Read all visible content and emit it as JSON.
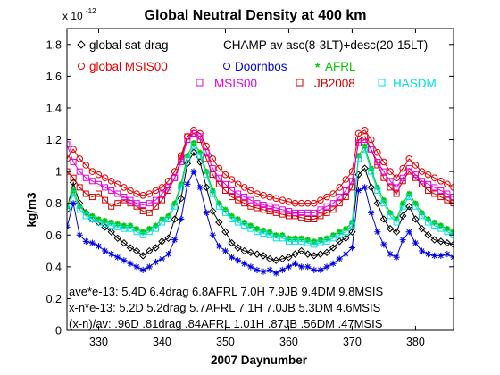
{
  "colors": {
    "global_drag": "#000000",
    "global_msis": "#e00000",
    "doornbos": "#0000e6",
    "afrl": "#00c800",
    "msis00": "#e000e0",
    "jb2008": "#d00000",
    "hasdm": "#00e0e0"
  },
  "chart_data": {
    "type": "line",
    "title": "Global Neutral Density at 400 km",
    "xlabel": "2007 Daynumber",
    "ylabel": "kg/m3",
    "y_scale_base": "x 10",
    "y_scale_exponent": "-12",
    "xlim": [
      325,
      386
    ],
    "ylim": [
      0,
      1.9
    ],
    "xticks": [
      330,
      340,
      350,
      360,
      370,
      380
    ],
    "yticks": [
      0,
      0.2,
      0.4,
      0.6,
      0.8,
      1,
      1.2,
      1.4,
      1.6,
      1.8
    ],
    "ytick_labels": [
      "0",
      "0.2",
      "0.4",
      "0.6",
      "0.8",
      "1",
      "1.2",
      "1.4",
      "1.6",
      "1.8"
    ],
    "grid": false,
    "legend": {
      "label_global_drag": "global sat drag",
      "label_champ": "CHAMP av asc(8-3LT)+desc(20-15LT)",
      "label_global_msis": "global MSIS00",
      "label_doornbos": "Doornbos",
      "label_afrl": "AFRL",
      "label_msis00": "MSIS00",
      "label_jb2008": "JB2008",
      "label_hasdm": "HASDM"
    },
    "annotations": [
      "ave*e-13: 5.4D 6.4drag 6.8AFRL 7.0H 7.9JB 9.4DM 9.8MSIS",
      "x-n*e-13: 5.2D 5.2drag 5.7AFRL 7.1H 7.0JB 5.3DM 4.6MSIS",
      "(x-n)/av: .96D .81drag .84AFRL 1.01H .87JB .56DM .47MSIS"
    ],
    "x": [
      325,
      326,
      327,
      328,
      329,
      330,
      331,
      332,
      333,
      334,
      335,
      336,
      337,
      338,
      339,
      340,
      341,
      342,
      343,
      344,
      345,
      346,
      347,
      348,
      349,
      350,
      351,
      352,
      353,
      354,
      355,
      356,
      357,
      358,
      359,
      360,
      361,
      362,
      363,
      364,
      365,
      366,
      367,
      368,
      369,
      370,
      371,
      372,
      373,
      374,
      375,
      376,
      377,
      378,
      379,
      380,
      381,
      382,
      383,
      384,
      385,
      386
    ],
    "series": [
      {
        "name": "global sat drag",
        "key": "global_drag",
        "marker": "diamond",
        "values": [
          0.76,
          0.93,
          0.8,
          0.74,
          0.7,
          0.68,
          0.65,
          0.62,
          0.58,
          0.55,
          0.52,
          0.5,
          0.47,
          0.5,
          0.52,
          0.56,
          0.58,
          0.7,
          0.83,
          1.05,
          1.12,
          1.06,
          0.9,
          0.75,
          0.68,
          0.62,
          0.55,
          0.52,
          0.5,
          0.49,
          0.48,
          0.47,
          0.45,
          0.44,
          0.45,
          0.46,
          0.48,
          0.5,
          0.48,
          0.47,
          0.48,
          0.49,
          0.52,
          0.56,
          0.58,
          0.62,
          0.98,
          1.02,
          0.9,
          0.8,
          0.7,
          0.64,
          0.62,
          0.72,
          0.78,
          0.7,
          0.64,
          0.6,
          0.57,
          0.56,
          0.55,
          0.54
        ]
      },
      {
        "name": "Doornbos",
        "key": "doornbos",
        "marker": "star",
        "values": [
          0.65,
          0.8,
          0.6,
          0.56,
          0.55,
          0.53,
          0.5,
          0.48,
          0.46,
          0.44,
          0.42,
          0.4,
          0.38,
          0.4,
          0.43,
          0.45,
          0.48,
          0.57,
          0.7,
          0.92,
          1.0,
          0.9,
          0.74,
          0.6,
          0.53,
          0.5,
          0.46,
          0.44,
          0.42,
          0.4,
          0.38,
          0.37,
          0.38,
          0.36,
          0.38,
          0.4,
          0.42,
          0.4,
          0.4,
          0.38,
          0.38,
          0.4,
          0.42,
          0.45,
          0.48,
          0.52,
          0.88,
          0.9,
          0.74,
          0.62,
          0.54,
          0.48,
          0.46,
          0.57,
          0.62,
          0.55,
          0.5,
          0.48,
          0.47,
          0.47,
          0.48,
          0.46
        ]
      },
      {
        "name": "AFRL",
        "key": "afrl",
        "marker": "asterisk",
        "values": [
          0.78,
          0.88,
          0.78,
          0.74,
          0.72,
          0.7,
          0.69,
          0.68,
          0.67,
          0.66,
          0.66,
          0.64,
          0.62,
          0.64,
          0.66,
          0.7,
          0.72,
          0.8,
          0.92,
          1.1,
          1.18,
          1.12,
          1.0,
          0.88,
          0.8,
          0.76,
          0.72,
          0.7,
          0.68,
          0.66,
          0.64,
          0.63,
          0.62,
          0.6,
          0.6,
          0.58,
          0.58,
          0.58,
          0.57,
          0.56,
          0.57,
          0.58,
          0.6,
          0.62,
          0.64,
          0.68,
          1.1,
          1.16,
          1.02,
          0.9,
          0.82,
          0.74,
          0.7,
          0.8,
          0.86,
          0.8,
          0.74,
          0.7,
          0.68,
          0.66,
          0.64,
          0.62
        ]
      },
      {
        "name": "HASDM",
        "key": "hasdm",
        "marker": "square",
        "values": [
          0.76,
          0.86,
          0.76,
          0.72,
          0.7,
          0.68,
          0.67,
          0.66,
          0.65,
          0.64,
          0.64,
          0.62,
          0.6,
          0.62,
          0.64,
          0.68,
          0.7,
          0.78,
          0.9,
          1.08,
          1.16,
          1.1,
          0.98,
          0.86,
          0.78,
          0.74,
          0.7,
          0.68,
          0.66,
          0.64,
          0.62,
          0.61,
          0.6,
          0.58,
          0.58,
          0.56,
          0.56,
          0.56,
          0.55,
          0.54,
          0.55,
          0.56,
          0.58,
          0.6,
          0.62,
          0.66,
          1.08,
          1.14,
          1.0,
          0.88,
          0.8,
          0.72,
          0.68,
          0.78,
          0.84,
          0.78,
          0.72,
          0.68,
          0.66,
          0.64,
          0.62,
          0.6
        ]
      },
      {
        "name": "JB2008",
        "key": "jb2008",
        "marker": "square",
        "values": [
          1.0,
          0.96,
          0.9,
          0.86,
          0.84,
          0.86,
          0.82,
          0.78,
          0.8,
          0.82,
          0.8,
          0.78,
          0.75,
          0.74,
          0.78,
          0.82,
          0.88,
          0.96,
          1.08,
          1.22,
          1.24,
          1.2,
          1.08,
          0.98,
          0.92,
          0.88,
          0.84,
          0.82,
          0.8,
          0.78,
          0.77,
          0.76,
          0.75,
          0.74,
          0.73,
          0.72,
          0.72,
          0.71,
          0.7,
          0.7,
          0.72,
          0.74,
          0.76,
          0.8,
          0.84,
          0.9,
          1.2,
          1.22,
          1.14,
          1.04,
          0.96,
          0.9,
          0.86,
          0.94,
          1.0,
          0.96,
          0.92,
          0.88,
          0.86,
          0.84,
          0.82,
          0.8
        ]
      },
      {
        "name": "global MSIS00",
        "key": "global_msis",
        "marker": "circle",
        "values": [
          1.08,
          1.14,
          1.08,
          1.04,
          1.0,
          0.98,
          0.96,
          0.94,
          0.92,
          0.9,
          0.88,
          0.86,
          0.85,
          0.86,
          0.88,
          0.9,
          0.94,
          1.0,
          1.1,
          1.22,
          1.26,
          1.24,
          1.16,
          1.08,
          1.02,
          0.98,
          0.95,
          0.92,
          0.9,
          0.88,
          0.86,
          0.85,
          0.84,
          0.83,
          0.82,
          0.81,
          0.8,
          0.8,
          0.8,
          0.8,
          0.82,
          0.84,
          0.86,
          0.9,
          0.95,
          1.0,
          1.24,
          1.26,
          1.2,
          1.12,
          1.06,
          1.0,
          0.96,
          1.02,
          1.08,
          1.04,
          1.0,
          0.98,
          0.96,
          0.94,
          0.92,
          0.9
        ]
      },
      {
        "name": "MSIS00",
        "key": "msis00",
        "marker": "square",
        "values": [
          1.17,
          1.06,
          1.0,
          0.96,
          0.94,
          0.92,
          0.9,
          0.88,
          0.86,
          0.84,
          0.82,
          0.8,
          0.79,
          0.8,
          0.82,
          0.86,
          0.9,
          0.96,
          1.06,
          1.2,
          1.24,
          1.22,
          1.12,
          1.02,
          0.96,
          0.92,
          0.88,
          0.86,
          0.84,
          0.82,
          0.8,
          0.79,
          0.78,
          0.77,
          0.76,
          0.75,
          0.74,
          0.74,
          0.74,
          0.74,
          0.76,
          0.78,
          0.8,
          0.84,
          0.88,
          0.94,
          1.18,
          1.2,
          1.14,
          1.06,
          1.0,
          0.94,
          0.9,
          0.96,
          1.02,
          0.98,
          0.94,
          0.92,
          0.9,
          0.88,
          0.86,
          0.84
        ]
      }
    ]
  }
}
